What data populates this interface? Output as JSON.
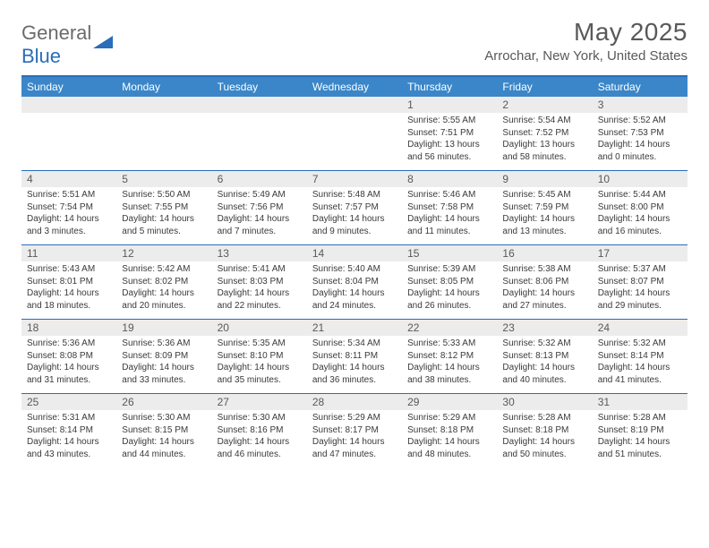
{
  "brand": {
    "part1": "General",
    "part2": "Blue"
  },
  "title": "May 2025",
  "location": "Arrochar, New York, United States",
  "colors": {
    "header_bg": "#3a86c8",
    "border": "#2a6db8",
    "daynum_bg": "#ececec",
    "text_muted": "#595959"
  },
  "day_names": [
    "Sunday",
    "Monday",
    "Tuesday",
    "Wednesday",
    "Thursday",
    "Friday",
    "Saturday"
  ],
  "weeks": [
    {
      "nums": [
        "",
        "",
        "",
        "",
        "1",
        "2",
        "3"
      ],
      "cells": [
        null,
        null,
        null,
        null,
        {
          "sr": "Sunrise: 5:55 AM",
          "ss": "Sunset: 7:51 PM",
          "dl": "Daylight: 13 hours and 56 minutes."
        },
        {
          "sr": "Sunrise: 5:54 AM",
          "ss": "Sunset: 7:52 PM",
          "dl": "Daylight: 13 hours and 58 minutes."
        },
        {
          "sr": "Sunrise: 5:52 AM",
          "ss": "Sunset: 7:53 PM",
          "dl": "Daylight: 14 hours and 0 minutes."
        }
      ]
    },
    {
      "nums": [
        "4",
        "5",
        "6",
        "7",
        "8",
        "9",
        "10"
      ],
      "cells": [
        {
          "sr": "Sunrise: 5:51 AM",
          "ss": "Sunset: 7:54 PM",
          "dl": "Daylight: 14 hours and 3 minutes."
        },
        {
          "sr": "Sunrise: 5:50 AM",
          "ss": "Sunset: 7:55 PM",
          "dl": "Daylight: 14 hours and 5 minutes."
        },
        {
          "sr": "Sunrise: 5:49 AM",
          "ss": "Sunset: 7:56 PM",
          "dl": "Daylight: 14 hours and 7 minutes."
        },
        {
          "sr": "Sunrise: 5:48 AM",
          "ss": "Sunset: 7:57 PM",
          "dl": "Daylight: 14 hours and 9 minutes."
        },
        {
          "sr": "Sunrise: 5:46 AM",
          "ss": "Sunset: 7:58 PM",
          "dl": "Daylight: 14 hours and 11 minutes."
        },
        {
          "sr": "Sunrise: 5:45 AM",
          "ss": "Sunset: 7:59 PM",
          "dl": "Daylight: 14 hours and 13 minutes."
        },
        {
          "sr": "Sunrise: 5:44 AM",
          "ss": "Sunset: 8:00 PM",
          "dl": "Daylight: 14 hours and 16 minutes."
        }
      ]
    },
    {
      "nums": [
        "11",
        "12",
        "13",
        "14",
        "15",
        "16",
        "17"
      ],
      "cells": [
        {
          "sr": "Sunrise: 5:43 AM",
          "ss": "Sunset: 8:01 PM",
          "dl": "Daylight: 14 hours and 18 minutes."
        },
        {
          "sr": "Sunrise: 5:42 AM",
          "ss": "Sunset: 8:02 PM",
          "dl": "Daylight: 14 hours and 20 minutes."
        },
        {
          "sr": "Sunrise: 5:41 AM",
          "ss": "Sunset: 8:03 PM",
          "dl": "Daylight: 14 hours and 22 minutes."
        },
        {
          "sr": "Sunrise: 5:40 AM",
          "ss": "Sunset: 8:04 PM",
          "dl": "Daylight: 14 hours and 24 minutes."
        },
        {
          "sr": "Sunrise: 5:39 AM",
          "ss": "Sunset: 8:05 PM",
          "dl": "Daylight: 14 hours and 26 minutes."
        },
        {
          "sr": "Sunrise: 5:38 AM",
          "ss": "Sunset: 8:06 PM",
          "dl": "Daylight: 14 hours and 27 minutes."
        },
        {
          "sr": "Sunrise: 5:37 AM",
          "ss": "Sunset: 8:07 PM",
          "dl": "Daylight: 14 hours and 29 minutes."
        }
      ]
    },
    {
      "nums": [
        "18",
        "19",
        "20",
        "21",
        "22",
        "23",
        "24"
      ],
      "cells": [
        {
          "sr": "Sunrise: 5:36 AM",
          "ss": "Sunset: 8:08 PM",
          "dl": "Daylight: 14 hours and 31 minutes."
        },
        {
          "sr": "Sunrise: 5:36 AM",
          "ss": "Sunset: 8:09 PM",
          "dl": "Daylight: 14 hours and 33 minutes."
        },
        {
          "sr": "Sunrise: 5:35 AM",
          "ss": "Sunset: 8:10 PM",
          "dl": "Daylight: 14 hours and 35 minutes."
        },
        {
          "sr": "Sunrise: 5:34 AM",
          "ss": "Sunset: 8:11 PM",
          "dl": "Daylight: 14 hours and 36 minutes."
        },
        {
          "sr": "Sunrise: 5:33 AM",
          "ss": "Sunset: 8:12 PM",
          "dl": "Daylight: 14 hours and 38 minutes."
        },
        {
          "sr": "Sunrise: 5:32 AM",
          "ss": "Sunset: 8:13 PM",
          "dl": "Daylight: 14 hours and 40 minutes."
        },
        {
          "sr": "Sunrise: 5:32 AM",
          "ss": "Sunset: 8:14 PM",
          "dl": "Daylight: 14 hours and 41 minutes."
        }
      ]
    },
    {
      "nums": [
        "25",
        "26",
        "27",
        "28",
        "29",
        "30",
        "31"
      ],
      "cells": [
        {
          "sr": "Sunrise: 5:31 AM",
          "ss": "Sunset: 8:14 PM",
          "dl": "Daylight: 14 hours and 43 minutes."
        },
        {
          "sr": "Sunrise: 5:30 AM",
          "ss": "Sunset: 8:15 PM",
          "dl": "Daylight: 14 hours and 44 minutes."
        },
        {
          "sr": "Sunrise: 5:30 AM",
          "ss": "Sunset: 8:16 PM",
          "dl": "Daylight: 14 hours and 46 minutes."
        },
        {
          "sr": "Sunrise: 5:29 AM",
          "ss": "Sunset: 8:17 PM",
          "dl": "Daylight: 14 hours and 47 minutes."
        },
        {
          "sr": "Sunrise: 5:29 AM",
          "ss": "Sunset: 8:18 PM",
          "dl": "Daylight: 14 hours and 48 minutes."
        },
        {
          "sr": "Sunrise: 5:28 AM",
          "ss": "Sunset: 8:18 PM",
          "dl": "Daylight: 14 hours and 50 minutes."
        },
        {
          "sr": "Sunrise: 5:28 AM",
          "ss": "Sunset: 8:19 PM",
          "dl": "Daylight: 14 hours and 51 minutes."
        }
      ]
    }
  ]
}
